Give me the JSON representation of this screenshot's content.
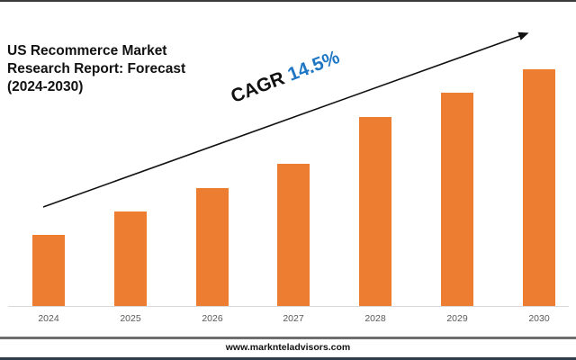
{
  "title": "US Recommerce Market Research Report: Forecast (2024-2030)",
  "annotation": {
    "label": "CAGR",
    "value": "14.5%",
    "label_color": "#111111",
    "value_color": "#1f77c4"
  },
  "footer": {
    "website": "www.marknteladvisors.com"
  },
  "colors": {
    "bar": "#ed7d31",
    "axis": "#d9d9d9",
    "tick_text": "#595959"
  },
  "chart_data": {
    "type": "bar",
    "title": "US Recommerce Market Research Report: Forecast (2024-2030)",
    "categories": [
      "2024",
      "2025",
      "2026",
      "2027",
      "2028",
      "2029",
      "2030"
    ],
    "values": [
      79,
      105,
      131,
      158,
      210,
      237,
      263
    ],
    "value_note": "Relative bar heights in pixels (no value axis or data labels shown)",
    "xlabel": "",
    "ylabel": "",
    "y_axis_visible": false,
    "grid": false,
    "legend": null,
    "annotations": [
      {
        "text": "CAGR 14.5%",
        "type": "trend-arrow",
        "from": [
          48,
          230
        ],
        "to": [
          588,
          36
        ]
      }
    ]
  }
}
